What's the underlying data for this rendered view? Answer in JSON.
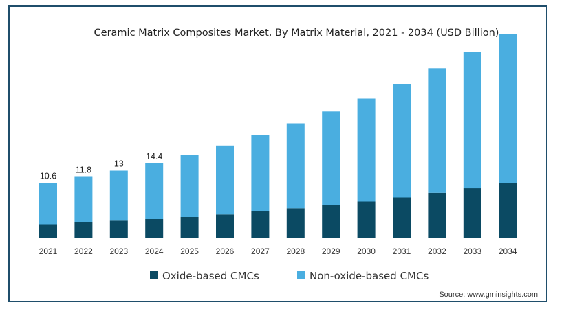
{
  "chart_data": {
    "type": "bar",
    "stacked": true,
    "title": "Ceramic Matrix Composites Market, By Matrix Material, 2021 - 2034 (USD Billion)",
    "categories": [
      "2021",
      "2022",
      "2023",
      "2024",
      "2025",
      "2026",
      "2027",
      "2028",
      "2029",
      "2030",
      "2031",
      "2032",
      "2033",
      "2034"
    ],
    "series": [
      {
        "name": "Oxide-based CMCs",
        "color": "#0b4a63",
        "values": [
          2.6,
          3.0,
          3.3,
          3.6,
          4.0,
          4.5,
          5.1,
          5.7,
          6.3,
          7.0,
          7.8,
          8.7,
          9.6,
          10.6
        ]
      },
      {
        "name": "Non-oxide-based CMCs",
        "color": "#4aaee0",
        "values": [
          8.0,
          8.8,
          9.7,
          10.8,
          12.0,
          13.4,
          14.9,
          16.5,
          18.2,
          20.0,
          22.0,
          24.2,
          26.5,
          28.9
        ]
      }
    ],
    "data_labels": [
      "10.6",
      "11.8",
      "13",
      "14.4"
    ],
    "ylim": [
      0,
      40
    ],
    "grid": false,
    "legend_position": "bottom",
    "source": "Source: www.gminsights.com"
  }
}
